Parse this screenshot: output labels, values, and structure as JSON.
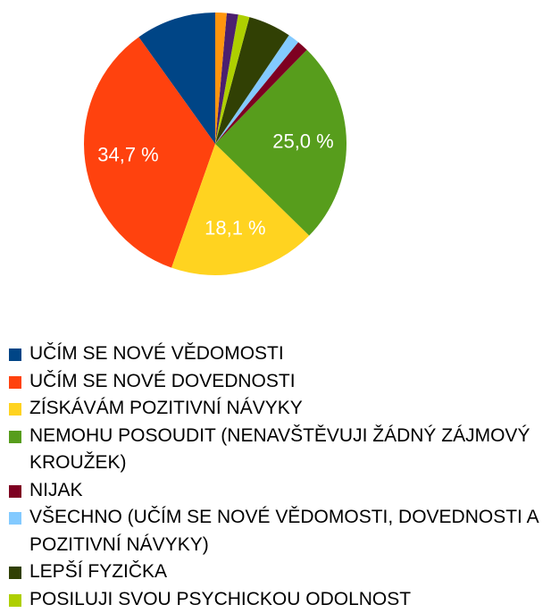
{
  "chart_data": {
    "type": "pie",
    "categories": [
      "UČÍM SE NOVÉ VĚDOMOSTI",
      "UČÍM SE NOVÉ DOVEDNOSTI",
      "ZÍSKÁVÁM POZITIVNÍ NÁVYKY",
      "NEMOHU POSOUDIT (NENAVŠTĚVUJI ŽÁDNÝ ZÁJMOVÝ KROUŽEK)",
      "NIJAK",
      "VŠECHNO (UČÍM SE NOVÉ VĚDOMOSTI, DOVEDNOSTI A POZITIVNÍ NÁVYKY)",
      "LEPŠÍ FYZIČKA",
      "POSILUJI SVOU PSYCHICKOU ODOLNOST",
      null,
      null
    ],
    "values": [
      9.9,
      34.7,
      18.1,
      25.0,
      1.4,
      1.4,
      5.3,
      1.4,
      1.4,
      1.4
    ],
    "value_labels": [
      null,
      "34,7 %",
      "18,1 %",
      "25,0 %",
      null,
      null,
      null,
      null,
      null,
      null
    ],
    "colors": [
      "#004586",
      "#ff420e",
      "#ffd320",
      "#579d1c",
      "#7e0021",
      "#83caff",
      "#314004",
      "#aecf00",
      "#4b1f6f",
      "#ff950e"
    ]
  }
}
